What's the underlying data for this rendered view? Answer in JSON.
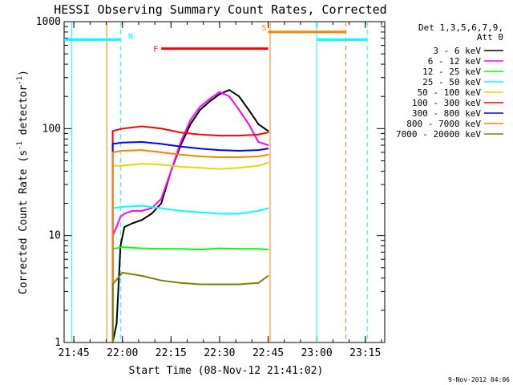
{
  "chart_data": {
    "type": "line",
    "title": "HESSI Observing Summary Count Rates, Corrected",
    "xlabel": "Start Time (08-Nov-12 21:41:02)",
    "ylabel": "Corrected Count Rate (s",
    "ylabel_sup1": "-1",
    "ylabel_mid": " detector",
    "ylabel_sup2": "-1",
    "ylabel_end": ")",
    "yscale": "log",
    "ylim": [
      1,
      1000
    ],
    "xlim_minutes": [
      21.7,
      23.35
    ],
    "x_units": "hours (UT)",
    "grid": false,
    "legend_header": [
      "Det 1,3,5,6,7,9,",
      "Att 0"
    ],
    "legend_position": "right",
    "date_stamp": "9-Nov-2012 04:06",
    "x_ticks": [
      {
        "v": 21.75,
        "label": "21:45"
      },
      {
        "v": 22.0,
        "label": "22:00"
      },
      {
        "v": 22.25,
        "label": "22:15"
      },
      {
        "v": 22.5,
        "label": "22:30"
      },
      {
        "v": 22.75,
        "label": "22:45"
      },
      {
        "v": 23.0,
        "label": "23:00"
      },
      {
        "v": 23.25,
        "label": "23:15"
      }
    ],
    "y_ticks": [
      {
        "v": 1,
        "label": "1"
      },
      {
        "v": 10,
        "label": "10"
      },
      {
        "v": 100,
        "label": "100"
      },
      {
        "v": 1000,
        "label": "1000"
      }
    ],
    "series": [
      {
        "name": "3 - 6 keV",
        "color": "#000000",
        "x": [
          21.95,
          21.97,
          21.99,
          22.01,
          22.05,
          22.1,
          22.15,
          22.2,
          22.25,
          22.3,
          22.35,
          22.4,
          22.45,
          22.5,
          22.55,
          22.6,
          22.65,
          22.7,
          22.75
        ],
        "y": [
          1,
          1.5,
          8,
          12,
          13,
          14,
          16,
          20,
          40,
          70,
          110,
          150,
          180,
          210,
          230,
          200,
          150,
          110,
          95
        ]
      },
      {
        "name": "6 - 12 keV",
        "color": "#ff00ff",
        "x": [
          21.95,
          21.97,
          21.99,
          22.01,
          22.05,
          22.1,
          22.15,
          22.2,
          22.25,
          22.3,
          22.35,
          22.4,
          22.45,
          22.5,
          22.55,
          22.6,
          22.65,
          22.7,
          22.75
        ],
        "y": [
          10,
          12,
          15,
          16,
          17,
          17,
          18,
          22,
          40,
          75,
          120,
          160,
          190,
          220,
          200,
          150,
          110,
          75,
          70
        ]
      },
      {
        "name": "12 - 25 keV",
        "color": "#00ff00",
        "x": [
          21.95,
          22.0,
          22.1,
          22.2,
          22.3,
          22.4,
          22.5,
          22.6,
          22.7,
          22.75
        ],
        "y": [
          7.5,
          7.8,
          7.6,
          7.5,
          7.5,
          7.4,
          7.6,
          7.5,
          7.5,
          7.4
        ]
      },
      {
        "name": "25 - 50 keV",
        "color": "#00ffff",
        "x": [
          21.95,
          22.0,
          22.1,
          22.2,
          22.3,
          22.4,
          22.5,
          22.6,
          22.7,
          22.75
        ],
        "y": [
          18,
          18.5,
          19,
          18,
          17,
          16.5,
          16,
          16,
          17,
          18
        ]
      },
      {
        "name": "50 - 100 keV",
        "color": "#dddd00",
        "x": [
          21.95,
          22.0,
          22.1,
          22.2,
          22.3,
          22.4,
          22.5,
          22.6,
          22.7,
          22.75
        ],
        "y": [
          45,
          45,
          47,
          46,
          44,
          43,
          42,
          43,
          45,
          48
        ]
      },
      {
        "name": "100 - 300 keV",
        "color": "#ff0000",
        "x": [
          21.95,
          22.0,
          22.1,
          22.2,
          22.3,
          22.4,
          22.5,
          22.6,
          22.7,
          22.75
        ],
        "y": [
          95,
          100,
          105,
          100,
          92,
          88,
          86,
          86,
          88,
          92
        ]
      },
      {
        "name": "300 - 800 keV",
        "color": "#0000ff",
        "x": [
          21.95,
          22.0,
          22.1,
          22.2,
          22.3,
          22.4,
          22.5,
          22.6,
          22.7,
          22.75
        ],
        "y": [
          72,
          74,
          75,
          72,
          68,
          65,
          63,
          62,
          63,
          65
        ]
      },
      {
        "name": "800 - 7000 keV",
        "color": "#ff8000",
        "x": [
          21.95,
          22.0,
          22.1,
          22.2,
          22.3,
          22.4,
          22.5,
          22.6,
          22.7,
          22.75
        ],
        "y": [
          60,
          62,
          63,
          60,
          57,
          55,
          54,
          54,
          55,
          57
        ]
      },
      {
        "name": "7000 - 20000 keV",
        "color": "#808000",
        "x": [
          21.95,
          22.0,
          22.1,
          22.2,
          22.3,
          22.4,
          22.5,
          22.6,
          22.7,
          22.75
        ],
        "y": [
          3.5,
          4.5,
          4.2,
          3.8,
          3.6,
          3.5,
          3.5,
          3.5,
          3.6,
          4.2
        ]
      }
    ],
    "flags": [
      {
        "label": "N",
        "color": "#00ffff",
        "x_start": 21.7,
        "x_end": 21.99,
        "y": 680,
        "dashed_at": 21.99,
        "solid_at": null
      },
      {
        "label": "F",
        "color": "#ff0000",
        "x_start": 22.2,
        "x_end": 22.75,
        "y": 560
      },
      {
        "label": "S",
        "color": "#ff8000",
        "x_start": 22.75,
        "x_end": 23.15,
        "y": 800
      },
      {
        "label": "",
        "color": "#00ffff",
        "x_start": 23.0,
        "x_end": 23.26,
        "y": 680
      }
    ],
    "vertical_lines": [
      {
        "x": 21.74,
        "color": "#00ffff",
        "style": "solid"
      },
      {
        "x": 21.99,
        "color": "#00ffff",
        "style": "dashed"
      },
      {
        "x": 21.92,
        "color": "#ff8000",
        "style": "solid"
      },
      {
        "x": 22.76,
        "color": "#ff8000",
        "style": "solid"
      },
      {
        "x": 23.0,
        "color": "#00ffff",
        "style": "solid"
      },
      {
        "x": 23.15,
        "color": "#ff8000",
        "style": "dashed"
      },
      {
        "x": 23.26,
        "color": "#00ffff",
        "style": "dashed"
      }
    ]
  }
}
